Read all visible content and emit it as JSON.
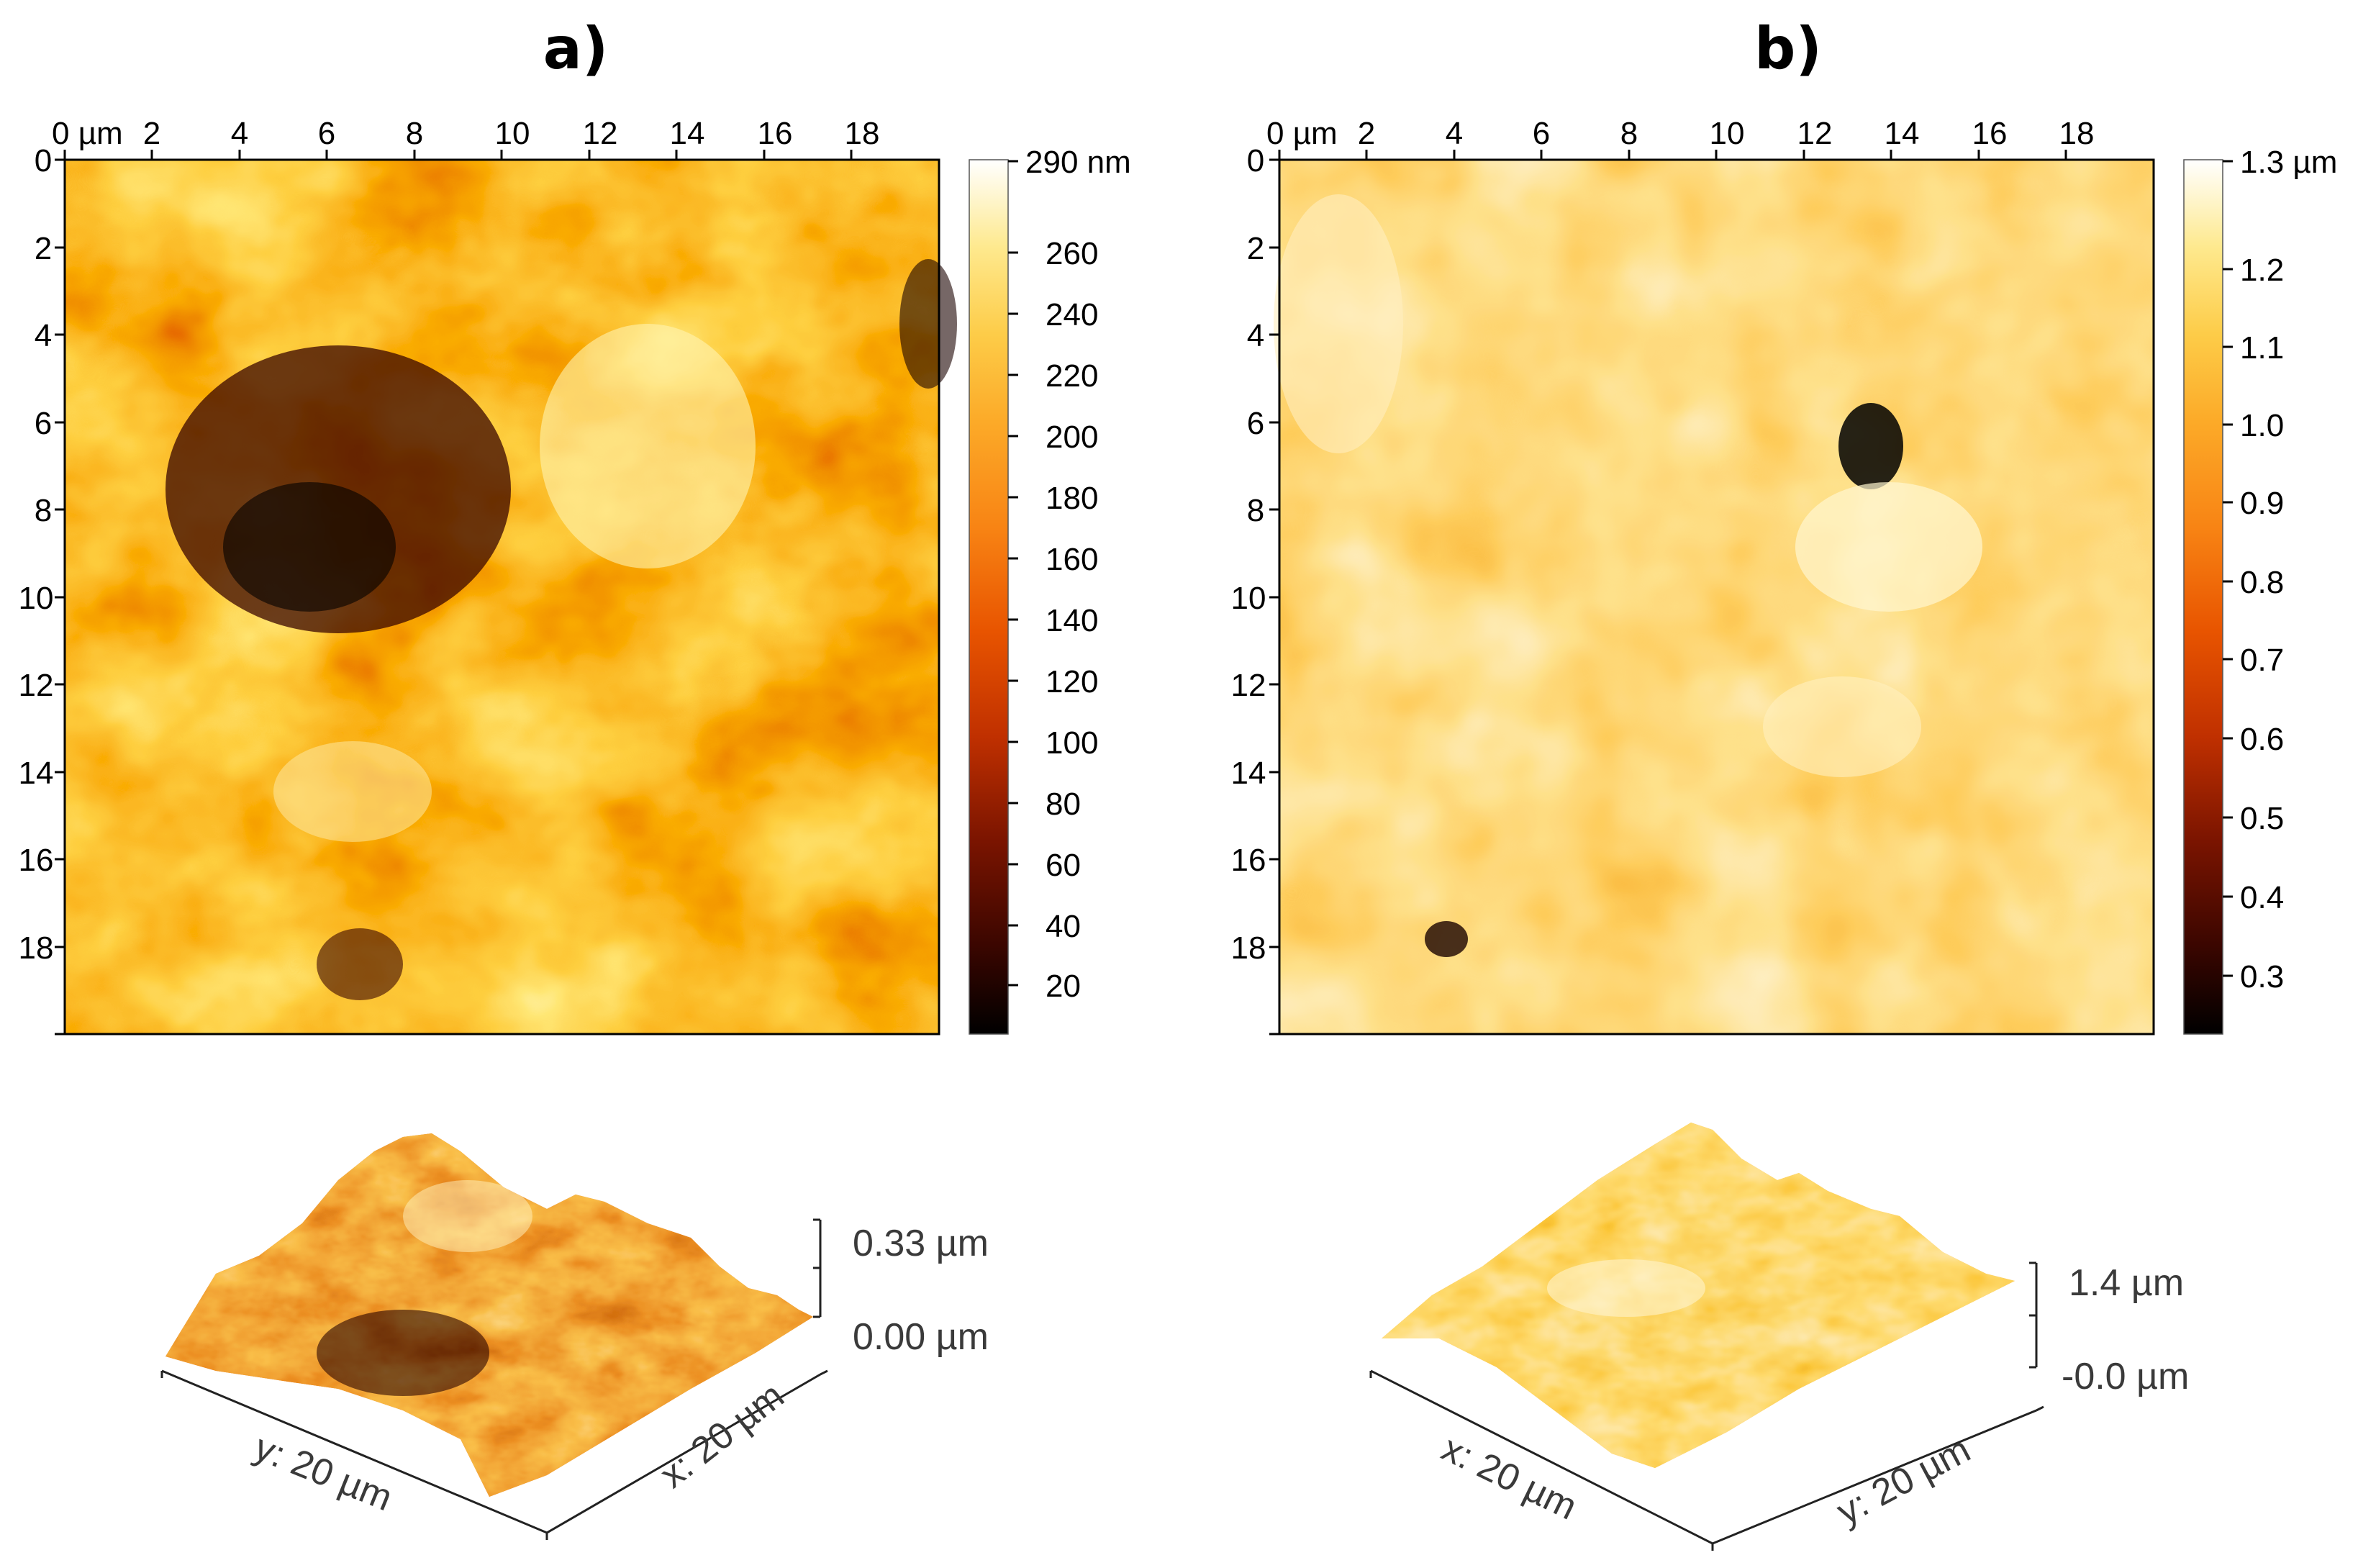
{
  "panels": [
    {
      "label": "a)",
      "x_ticks": [
        "0 µm",
        "2",
        "4",
        "6",
        "8",
        "10",
        "12",
        "14",
        "16",
        "18"
      ],
      "y_ticks": [
        "0",
        "2",
        "4",
        "6",
        "8",
        "10",
        "12",
        "14",
        "16",
        "18"
      ],
      "colorbar_ticks": [
        "290 nm",
        "260",
        "240",
        "220",
        "200",
        "180",
        "160",
        "140",
        "120",
        "100",
        "80",
        "60",
        "40",
        "20"
      ],
      "surface_3d": {
        "z_max_label": "0.33 µm",
        "z_min_label": "0.00 µm",
        "axis_left_label": "y: 20 µm",
        "axis_right_label": "x: 20 µm"
      }
    },
    {
      "label": "b)",
      "x_ticks": [
        "0 µm",
        "2",
        "4",
        "6",
        "8",
        "10",
        "12",
        "14",
        "16",
        "18"
      ],
      "y_ticks": [
        "0",
        "2",
        "4",
        "6",
        "8",
        "10",
        "12",
        "14",
        "16",
        "18"
      ],
      "colorbar_ticks": [
        "1.3 µm",
        "1.2",
        "1.1",
        "1.0",
        "0.9",
        "0.8",
        "0.7",
        "0.6",
        "0.5",
        "0.4",
        "0.3"
      ],
      "surface_3d": {
        "z_max_label": "1.4 µm",
        "z_min_label": "-0.0 µm",
        "axis_left_label": "x: 20 µm",
        "axis_right_label": "y: 20 µm"
      }
    }
  ],
  "colormap": [
    "#000000",
    "#3a0600",
    "#7a1400",
    "#b52a00",
    "#e04a00",
    "#f57a10",
    "#fba226",
    "#fdc640",
    "#fee37a",
    "#fff6c8",
    "#ffffff"
  ]
}
